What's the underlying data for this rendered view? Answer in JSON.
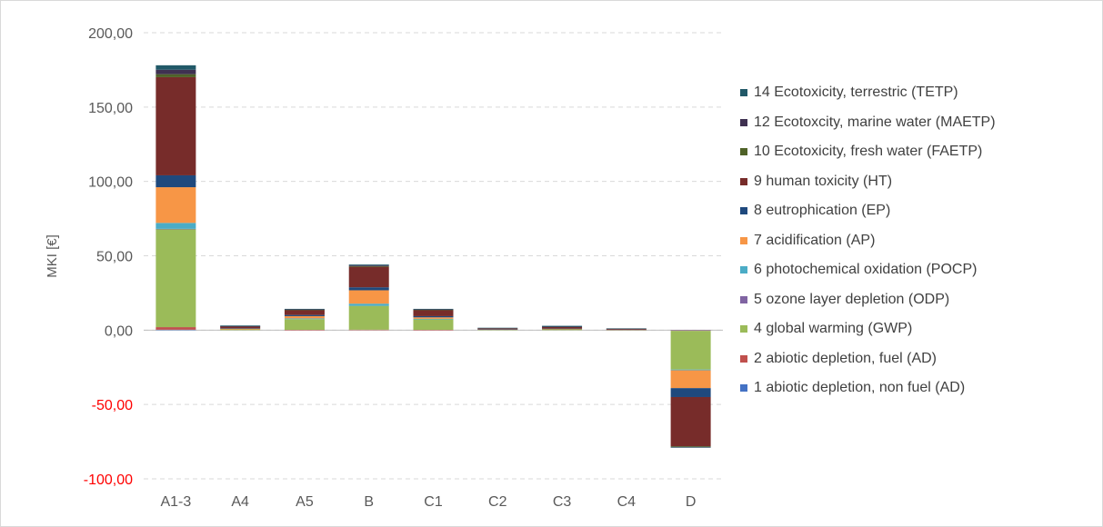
{
  "chart_data": {
    "type": "bar",
    "stacked": true,
    "title": "",
    "xlabel": "",
    "ylabel": "MKI [€]",
    "ylim": [
      -100,
      200
    ],
    "yticks": [
      200,
      150,
      100,
      50,
      0,
      -50,
      -100
    ],
    "ytick_labels": [
      "200,00",
      "150,00",
      "100,00",
      "50,00",
      "0,00",
      "-50,00",
      "-100,00"
    ],
    "negative_tick_color": "#ff0000",
    "grid": true,
    "legend_position": "right",
    "categories": [
      "A1-3",
      "A4",
      "A5",
      "B",
      "C1",
      "C2",
      "C3",
      "C4",
      "D"
    ],
    "series": [
      {
        "name": "1 abiotic depletion, non fuel (AD)",
        "color": "#4472c4",
        "values": [
          0.3,
          0,
          0,
          0,
          0,
          0,
          0,
          0,
          -0.2
        ]
      },
      {
        "name": "2 abiotic depletion, fuel (AD)",
        "color": "#c0504d",
        "values": [
          1.7,
          0,
          0.2,
          0.3,
          0.2,
          0,
          0,
          0,
          -0.3
        ]
      },
      {
        "name": "4 global warming (GWP)",
        "color": "#9bbb59",
        "values": [
          66,
          0.5,
          7.2,
          16,
          7,
          0.3,
          0.6,
          0.2,
          -26
        ]
      },
      {
        "name": "5 ozone layer depletion (ODP)",
        "color": "#8064a2",
        "values": [
          0.1,
          0,
          0,
          0,
          0,
          0,
          0,
          0,
          0
        ]
      },
      {
        "name": "6 photochemical oxidation (POCP)",
        "color": "#4bacc6",
        "values": [
          4,
          0,
          0.5,
          1.5,
          0.4,
          0,
          0,
          0,
          -0.5
        ]
      },
      {
        "name": "7 acidification (AP)",
        "color": "#f79646",
        "values": [
          24,
          0.4,
          1.5,
          9,
          1,
          0.2,
          0.2,
          0.1,
          -12
        ]
      },
      {
        "name": "8 eutrophication (EP)",
        "color": "#1f497d",
        "values": [
          8,
          0.3,
          0.8,
          2,
          0.8,
          0.1,
          0.2,
          0.1,
          -6
        ]
      },
      {
        "name": "9 human toxicity (HT)",
        "color": "#772c2a",
        "values": [
          66,
          1.3,
          3.4,
          13.8,
          4.2,
          0.6,
          1.2,
          0.6,
          -33
        ]
      },
      {
        "name": "10 Ecotoxicity, fresh water (FAETP)",
        "color": "#4f6228",
        "values": [
          2,
          0,
          0.1,
          0.4,
          0.1,
          0,
          0,
          0,
          -0.5
        ]
      },
      {
        "name": "12 Ecotoxcity, marine water (MAETP)",
        "color": "#3f3151",
        "values": [
          3,
          0.1,
          0.2,
          0.5,
          0.2,
          0,
          0.1,
          0,
          -0.3
        ]
      },
      {
        "name": "14 Ecotoxicity, terrestric (TETP)",
        "color": "#215968",
        "values": [
          3,
          0.5,
          0.4,
          0.6,
          0.4,
          0.4,
          0.6,
          0.2,
          -0.2
        ]
      }
    ]
  }
}
